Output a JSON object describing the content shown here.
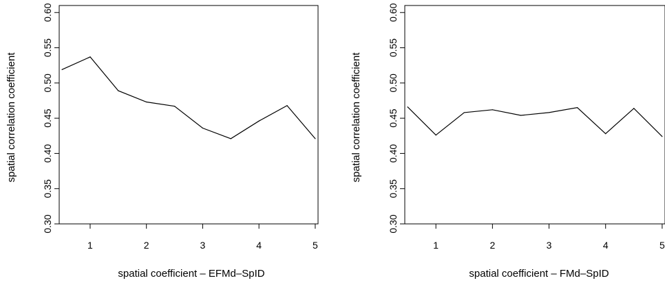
{
  "chart_data": [
    {
      "type": "line",
      "xlabel": "spatial coefficient – EFMd–SpID",
      "ylabel": "spatial correlation coefficient",
      "x": [
        0.5,
        1.0,
        1.5,
        2.0,
        2.5,
        3.0,
        3.5,
        4.0,
        4.5,
        5.0
      ],
      "values": [
        0.519,
        0.537,
        0.489,
        0.473,
        0.467,
        0.436,
        0.421,
        0.446,
        0.468,
        0.421
      ],
      "xticks": [
        "1",
        "2",
        "3",
        "4",
        "5"
      ],
      "yticks": [
        "0.30",
        "0.35",
        "0.40",
        "0.45",
        "0.50",
        "0.55",
        "0.60"
      ],
      "xlim": [
        0.45,
        5.05
      ],
      "ylim": [
        0.3,
        0.61
      ],
      "grid": false
    },
    {
      "type": "line",
      "xlabel": "spatial coefficient – FMd–SpID",
      "ylabel": "spatial correlation coefficient",
      "x": [
        0.5,
        1.0,
        1.5,
        2.0,
        2.5,
        3.0,
        3.5,
        4.0,
        4.5,
        5.0
      ],
      "values": [
        0.466,
        0.426,
        0.458,
        0.462,
        0.454,
        0.458,
        0.465,
        0.428,
        0.464,
        0.424
      ],
      "xticks": [
        "1",
        "2",
        "3",
        "4",
        "5"
      ],
      "yticks": [
        "0.30",
        "0.35",
        "0.40",
        "0.45",
        "0.50",
        "0.55",
        "0.60"
      ],
      "xlim": [
        0.45,
        5.05
      ],
      "ylim": [
        0.3,
        0.61
      ],
      "grid": false
    }
  ]
}
